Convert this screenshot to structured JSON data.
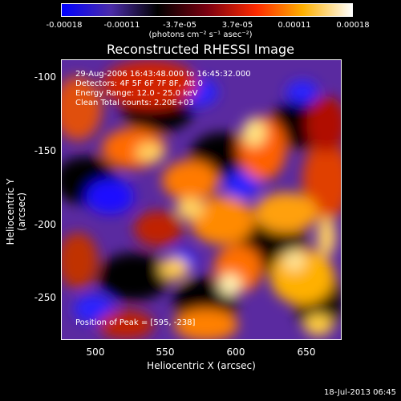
{
  "colorbar": {
    "ticks": [
      "-0.00018",
      "-0.00011",
      "-3.7e-05",
      "3.7e-05",
      "0.00011",
      "0.00018"
    ],
    "units": "(photons cm⁻² s⁻¹ asec⁻²)",
    "colors": [
      "#0000ff",
      "#4b2ca8",
      "#000000",
      "#7a0010",
      "#ff2a00",
      "#ffb000",
      "#ffffff"
    ]
  },
  "title": "Reconstructed RHESSI Image",
  "info": {
    "time_range": "29-Aug-2006 16:43:48.000 to 16:45:32.000",
    "detectors": "Detectors: 4F 5F 6F 7F 8F, Att 0",
    "energy": "Energy Range: 12.0 - 25.0 keV",
    "clean": "Clean    Total counts: 2.20E+03",
    "peak": "Position of Peak = [595, -238]"
  },
  "axes": {
    "xlabel": "Heliocentric X (arcsec)",
    "ylabel": "Heliocentric Y (arcsec)",
    "xticks": [
      "500",
      "550",
      "600",
      "650"
    ],
    "yticks": [
      "-100",
      "-150",
      "-200",
      "-250"
    ]
  },
  "timestamp": "18-Jul-2013 06:45"
}
